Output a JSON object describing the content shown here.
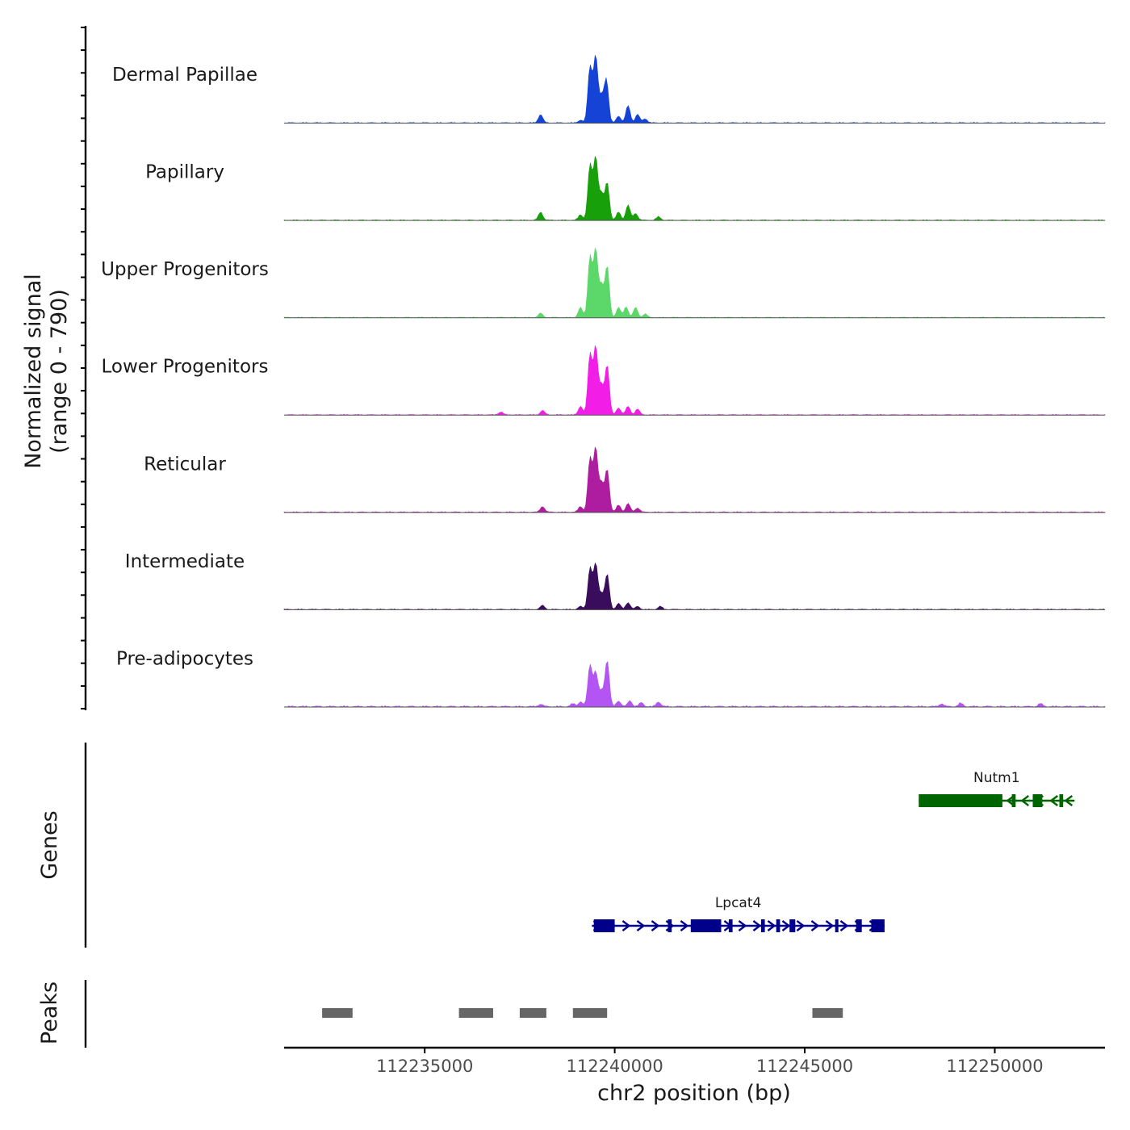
{
  "chart_data": {
    "type": "area",
    "ylabel_line1": "Normalized signal",
    "ylabel_line2": "(range 0 - 790)",
    "y_range": [
      0,
      790
    ],
    "xlabel": "chr2 position (bp)",
    "xlim": [
      112231300,
      112252900
    ],
    "x_ticks": [
      112235000,
      112240000,
      112245000,
      112250000
    ],
    "x_tick_labels": [
      "112235000",
      "112240000",
      "112245000",
      "112250000"
    ],
    "tracks": [
      {
        "name": "Dermal Papillae",
        "color": "#1443D6",
        "scale": 1.0,
        "bg_scale": 1.0,
        "peaks": [
          [
            112238050,
            0.12
          ],
          [
            112239100,
            0.04
          ],
          [
            112239350,
            0.8
          ],
          [
            112239500,
            0.95
          ],
          [
            112239650,
            0.35
          ],
          [
            112239780,
            0.62
          ],
          [
            112240100,
            0.1
          ],
          [
            112240350,
            0.25
          ],
          [
            112240600,
            0.12
          ],
          [
            112240800,
            0.06
          ]
        ]
      },
      {
        "name": "Papillary",
        "color": "#18A00A",
        "scale": 0.98,
        "bg_scale": 1.0,
        "peaks": [
          [
            112238050,
            0.12
          ],
          [
            112239100,
            0.08
          ],
          [
            112239350,
            0.8
          ],
          [
            112239500,
            0.92
          ],
          [
            112239650,
            0.38
          ],
          [
            112239800,
            0.55
          ],
          [
            112240100,
            0.12
          ],
          [
            112240350,
            0.22
          ],
          [
            112240550,
            0.1
          ],
          [
            112241150,
            0.05
          ]
        ]
      },
      {
        "name": "Upper Progenitors",
        "color": "#5CD86A",
        "scale": 1.02,
        "bg_scale": 1.0,
        "peaks": [
          [
            112238050,
            0.06
          ],
          [
            112239100,
            0.14
          ],
          [
            112239350,
            0.85
          ],
          [
            112239500,
            0.95
          ],
          [
            112239650,
            0.45
          ],
          [
            112239800,
            0.72
          ],
          [
            112240100,
            0.14
          ],
          [
            112240300,
            0.15
          ],
          [
            112240550,
            0.14
          ],
          [
            112240800,
            0.05
          ]
        ]
      },
      {
        "name": "Lower Progenitors",
        "color": "#F21EE8",
        "scale": 1.02,
        "bg_scale": 1.0,
        "peaks": [
          [
            112237000,
            0.04
          ],
          [
            112238100,
            0.06
          ],
          [
            112239100,
            0.12
          ],
          [
            112239350,
            0.85
          ],
          [
            112239500,
            0.95
          ],
          [
            112239650,
            0.4
          ],
          [
            112239800,
            0.7
          ],
          [
            112240100,
            0.1
          ],
          [
            112240350,
            0.12
          ],
          [
            112240600,
            0.08
          ]
        ]
      },
      {
        "name": "Reticular",
        "color": "#AE1CA0",
        "scale": 1.02,
        "bg_scale": 1.0,
        "peaks": [
          [
            112238100,
            0.08
          ],
          [
            112239100,
            0.08
          ],
          [
            112239350,
            0.75
          ],
          [
            112239500,
            0.9
          ],
          [
            112239650,
            0.4
          ],
          [
            112239800,
            0.6
          ],
          [
            112240100,
            0.1
          ],
          [
            112240350,
            0.12
          ],
          [
            112240600,
            0.06
          ]
        ]
      },
      {
        "name": "Intermediate",
        "color": "#3A0C5C",
        "scale": 0.72,
        "bg_scale": 1.0,
        "peaks": [
          [
            112238100,
            0.08
          ],
          [
            112239100,
            0.06
          ],
          [
            112239350,
            0.82
          ],
          [
            112239500,
            0.9
          ],
          [
            112239650,
            0.3
          ],
          [
            112239800,
            0.7
          ],
          [
            112240100,
            0.12
          ],
          [
            112240350,
            0.14
          ],
          [
            112240600,
            0.06
          ],
          [
            112241200,
            0.06
          ]
        ]
      },
      {
        "name": "Pre-adipocytes",
        "color": "#B355F2",
        "scale": 0.7,
        "bg_scale": 1.6,
        "peaks": [
          [
            112238050,
            0.05
          ],
          [
            112238900,
            0.06
          ],
          [
            112239100,
            0.1
          ],
          [
            112239350,
            0.85
          ],
          [
            112239500,
            0.7
          ],
          [
            112239650,
            0.3
          ],
          [
            112239800,
            0.95
          ],
          [
            112240100,
            0.12
          ],
          [
            112240400,
            0.12
          ],
          [
            112240700,
            0.08
          ],
          [
            112241150,
            0.1
          ],
          [
            112248600,
            0.06
          ],
          [
            112249100,
            0.07
          ],
          [
            112251200,
            0.06
          ]
        ]
      }
    ],
    "genes_label": "Genes",
    "genes": [
      {
        "name": "Nutm1",
        "strand": "-",
        "color": "#006400",
        "start": 112248000,
        "end": 112252100,
        "exons": [
          [
            112248000,
            112250200
          ],
          [
            112250450,
            112250550
          ],
          [
            112251000,
            112251250
          ],
          [
            112251700,
            112251800
          ]
        ]
      },
      {
        "name": "Lpcat4",
        "strand": "+",
        "color": "#00008B",
        "start": 112239400,
        "end": 112247100,
        "exons": [
          [
            112239450,
            112240000
          ],
          [
            112241400,
            112241500
          ],
          [
            112242000,
            112242800
          ],
          [
            112243000,
            112243100
          ],
          [
            112243850,
            112243950
          ],
          [
            112244250,
            112244350
          ],
          [
            112244600,
            112244750
          ],
          [
            112245800,
            112245880
          ],
          [
            112246350,
            112246500
          ],
          [
            112246750,
            112247100
          ]
        ]
      }
    ],
    "peaks_label": "Peaks",
    "peaks": [
      [
        112232300,
        112233100
      ],
      [
        112235900,
        112236800
      ],
      [
        112237500,
        112238200
      ],
      [
        112238900,
        112239800
      ],
      [
        112245200,
        112246000
      ]
    ]
  }
}
